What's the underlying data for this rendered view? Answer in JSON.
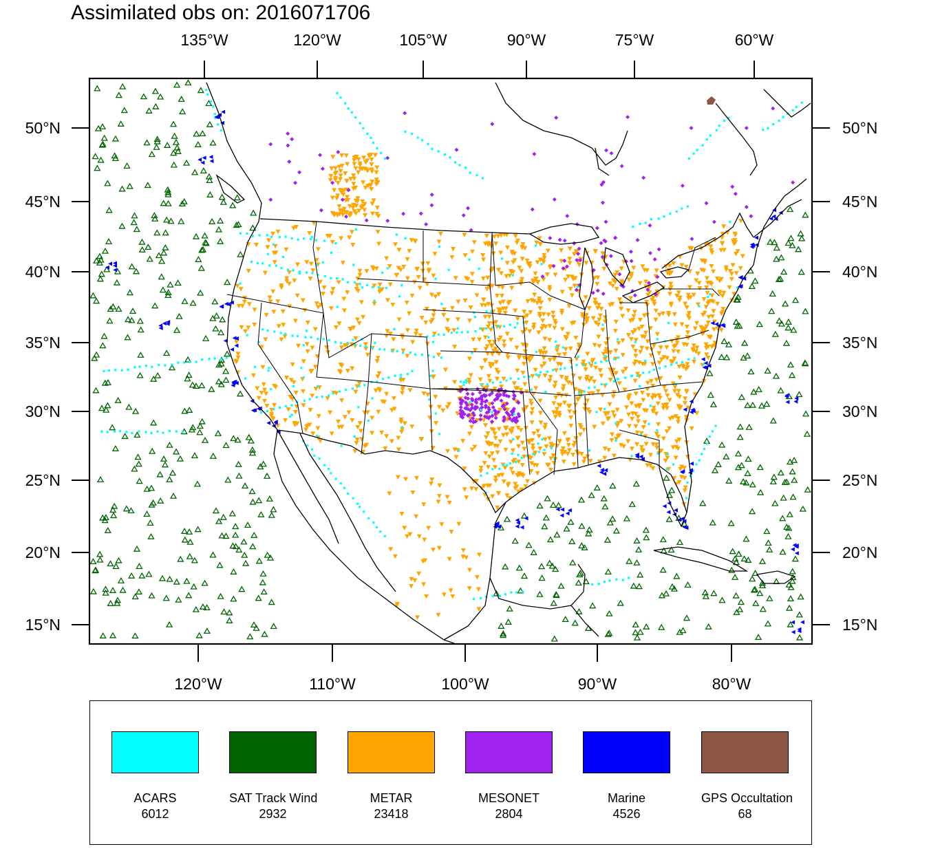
{
  "title": "Assimilated obs on: 2016071706",
  "map": {
    "projection": "lambert-conformal",
    "top_axis_labels": [
      "135°W",
      "120°W",
      "105°W",
      "90°W",
      "75°W",
      "60°W"
    ],
    "bottom_axis_labels": [
      "120°W",
      "110°W",
      "100°W",
      "90°W",
      "80°W"
    ],
    "left_axis_labels": [
      "50°N",
      "45°N",
      "40°N",
      "35°N",
      "30°N",
      "25°N",
      "20°N",
      "15°N"
    ],
    "right_axis_labels": [
      "50°N",
      "45°N",
      "40°N",
      "35°N",
      "30°N",
      "25°N",
      "20°N",
      "15°N"
    ],
    "land_color": "#ffffff",
    "boundary_color": "#000000"
  },
  "legend": [
    {
      "name": "ACARS",
      "count": "6012",
      "color": "#00ffff",
      "marker": "small-square"
    },
    {
      "name": "SAT Track Wind",
      "count": "2932",
      "color": "#006400",
      "marker": "hollow-triangle"
    },
    {
      "name": "METAR",
      "count": "23418",
      "color": "#ffa500",
      "marker": "down-triangle"
    },
    {
      "name": "MESONET",
      "count": "2804",
      "color": "#a020f0",
      "marker": "diamond"
    },
    {
      "name": "Marine",
      "count": "4526",
      "color": "#0000ff",
      "marker": "left-triangle"
    },
    {
      "name": "GPS Occultation",
      "count": "68",
      "color": "#8b5742",
      "marker": "square"
    }
  ]
}
